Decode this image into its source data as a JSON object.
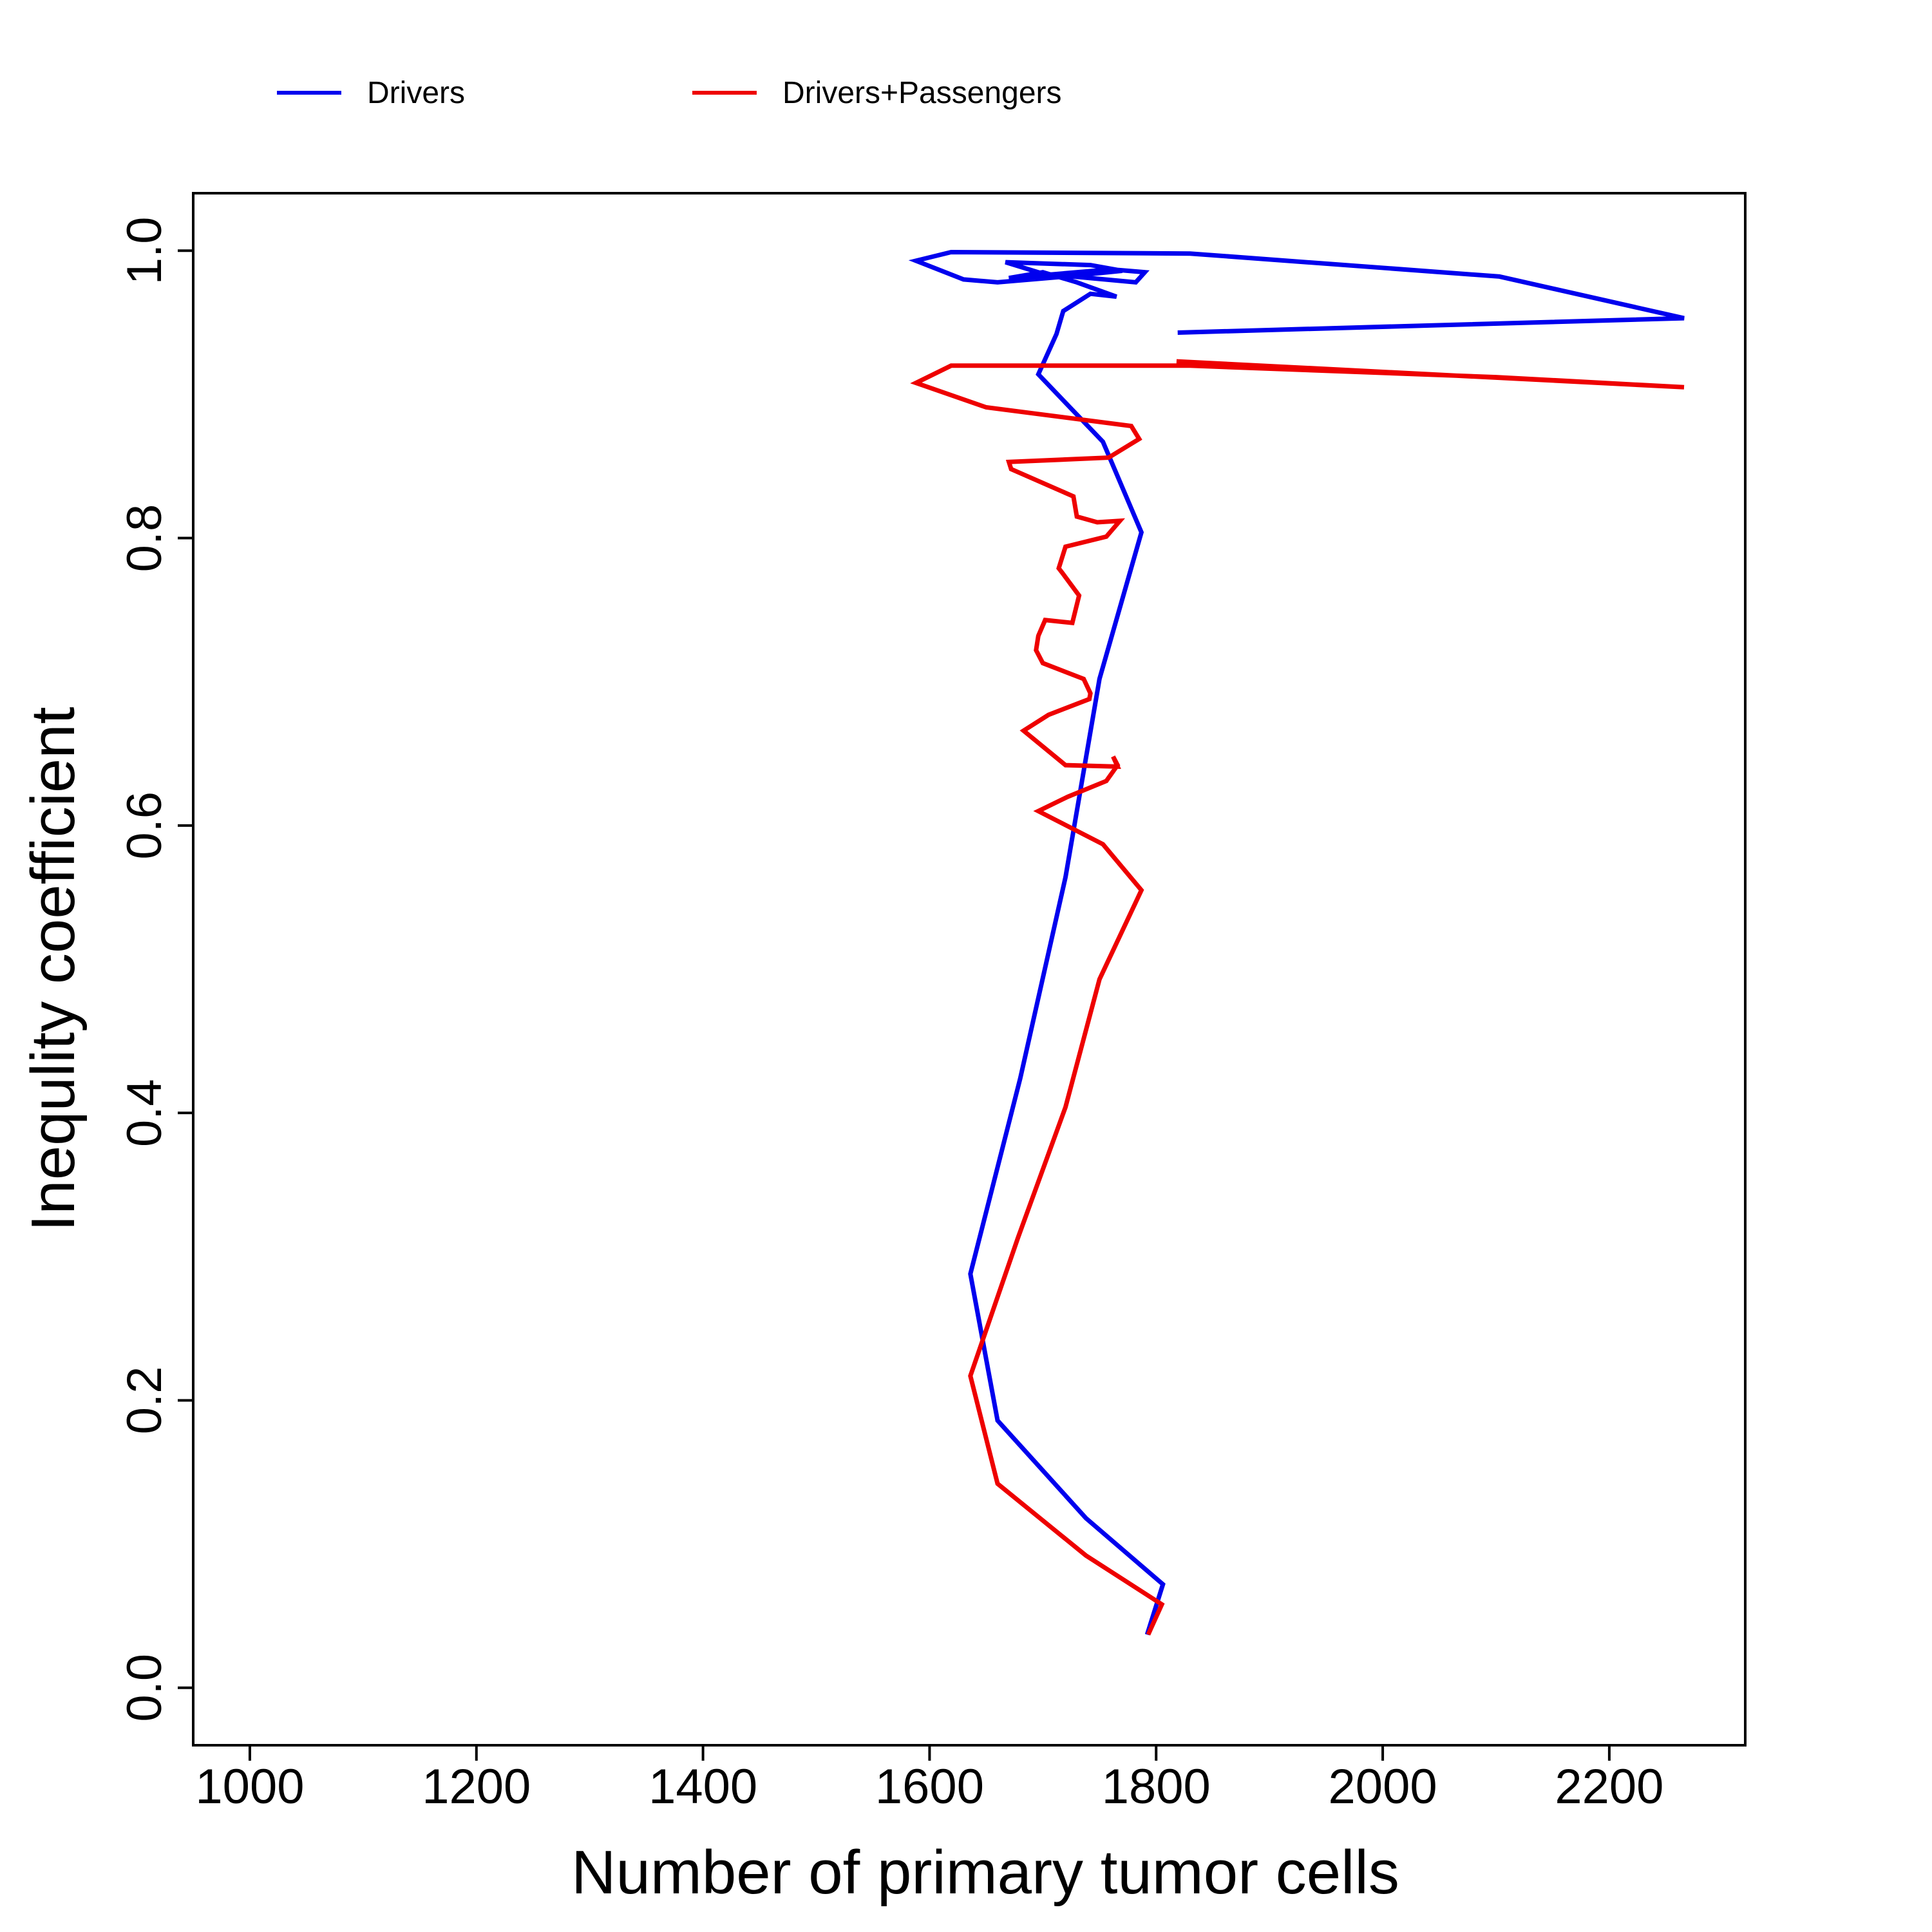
{
  "chart_data": {
    "type": "line",
    "xlabel": "Number of primary tumor cells",
    "ylabel": "Inequlity coefficient",
    "xlim": [
      950,
      2320
    ],
    "ylim": [
      -0.04,
      1.04
    ],
    "x_ticks": [
      1000,
      1200,
      1400,
      1600,
      1800,
      2000,
      2200
    ],
    "y_ticks": [
      0.0,
      0.2,
      0.4,
      0.6,
      0.8,
      1.0
    ],
    "x_tick_labels": [
      "1000",
      "1200",
      "1400",
      "1600",
      "1800",
      "2000",
      "2200"
    ],
    "y_tick_labels": [
      "0.0",
      "0.2",
      "0.4",
      "0.6",
      "0.8",
      "1.0"
    ],
    "grid": false,
    "legend_position": "top",
    "series": [
      {
        "name": "Drivers",
        "color": "#0000ee",
        "points": [
          [
            1792,
            0.037
          ],
          [
            1806,
            0.072
          ],
          [
            1738,
            0.118
          ],
          [
            1660,
            0.186
          ],
          [
            1636,
            0.288
          ],
          [
            1680,
            0.424
          ],
          [
            1720,
            0.564
          ],
          [
            1750,
            0.702
          ],
          [
            1787,
            0.804
          ],
          [
            1753,
            0.867
          ],
          [
            1696,
            0.914
          ],
          [
            1712,
            0.942
          ],
          [
            1718,
            0.958
          ],
          [
            1742,
            0.97
          ],
          [
            1765,
            0.968
          ],
          [
            1730,
            0.978
          ],
          [
            1700,
            0.985
          ],
          [
            1670,
            0.981
          ],
          [
            1760,
            0.987
          ],
          [
            1790,
            0.985
          ],
          [
            1782,
            0.978
          ],
          [
            1700,
            0.984
          ],
          [
            1667,
            0.992
          ],
          [
            1742,
            0.99
          ],
          [
            1770,
            0.986
          ],
          [
            1720,
            0.982
          ],
          [
            1660,
            0.978
          ],
          [
            1630,
            0.98
          ],
          [
            1588,
            0.993
          ],
          [
            1619,
            0.999
          ],
          [
            1830,
            0.998
          ],
          [
            2103,
            0.982
          ],
          [
            2266,
            0.953
          ],
          [
            1819,
            0.943
          ]
        ]
      },
      {
        "name": "Drivers+Passengers",
        "color": "#ee0000",
        "points": [
          [
            1793,
            0.037
          ],
          [
            1805,
            0.058
          ],
          [
            1738,
            0.092
          ],
          [
            1660,
            0.142
          ],
          [
            1636,
            0.217
          ],
          [
            1678,
            0.313
          ],
          [
            1720,
            0.404
          ],
          [
            1750,
            0.493
          ],
          [
            1787,
            0.555
          ],
          [
            1753,
            0.587
          ],
          [
            1696,
            0.61
          ],
          [
            1722,
            0.62
          ],
          [
            1756,
            0.631
          ],
          [
            1766,
            0.642
          ],
          [
            1762,
            0.648
          ],
          [
            1766,
            0.641
          ],
          [
            1720,
            0.642
          ],
          [
            1683,
            0.666
          ],
          [
            1705,
            0.677
          ],
          [
            1741,
            0.688
          ],
          [
            1742,
            0.692
          ],
          [
            1736,
            0.702
          ],
          [
            1700,
            0.713
          ],
          [
            1694,
            0.722
          ],
          [
            1696,
            0.732
          ],
          [
            1702,
            0.743
          ],
          [
            1726,
            0.741
          ],
          [
            1732,
            0.76
          ],
          [
            1717,
            0.776
          ],
          [
            1714,
            0.779
          ],
          [
            1720,
            0.794
          ],
          [
            1756,
            0.801
          ],
          [
            1768,
            0.812
          ],
          [
            1748,
            0.811
          ],
          [
            1730,
            0.815
          ],
          [
            1727,
            0.829
          ],
          [
            1672,
            0.848
          ],
          [
            1670,
            0.853
          ],
          [
            1758,
            0.856
          ],
          [
            1785,
            0.869
          ],
          [
            1778,
            0.878
          ],
          [
            1650,
            0.891
          ],
          [
            1588,
            0.908
          ],
          [
            1619,
            0.92
          ],
          [
            1830,
            0.92
          ],
          [
            2100,
            0.912
          ],
          [
            2266,
            0.905
          ],
          [
            1818,
            0.923
          ]
        ]
      }
    ]
  }
}
